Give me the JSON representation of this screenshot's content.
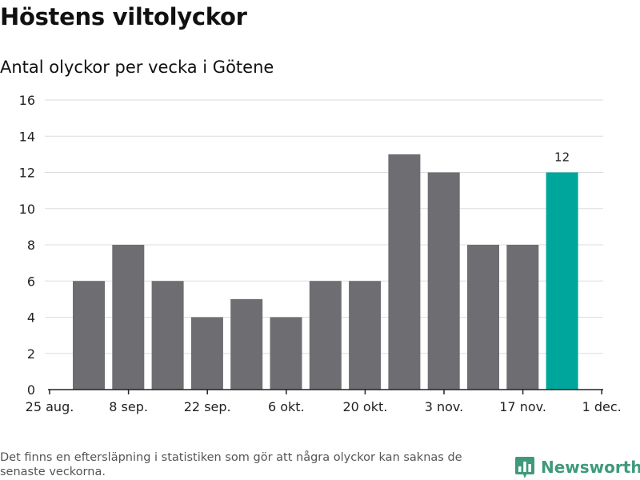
{
  "title": "Höstens viltolyckor",
  "subtitle": "Antal olyckor per vecka i Götene",
  "footnote": "Det finns en eftersläpning i statistiken som gör att några olyckor kan saknas de senaste veckorna.",
  "logo": {
    "text": "Newsworthy",
    "icon": "newsworthy-logo-icon"
  },
  "colors": {
    "bar": "#6e6d72",
    "highlight": "#00a59b",
    "grid": "#dddddd",
    "axis": "#222222"
  },
  "chart_data": {
    "type": "bar",
    "values": [
      6,
      8,
      6,
      4,
      5,
      4,
      6,
      6,
      13,
      12,
      8,
      8,
      12
    ],
    "highlight_index": 12,
    "data_labels": [
      {
        "index": 12,
        "text": "12"
      }
    ],
    "x_tick_labels": [
      "25 aug.",
      "8 sep.",
      "22 sep.",
      "6 okt.",
      "20 okt.",
      "3 nov.",
      "17 nov.",
      "1 dec."
    ],
    "y_ticks": [
      0,
      2,
      4,
      6,
      8,
      10,
      12,
      14,
      16
    ],
    "ylim": [
      0,
      16
    ],
    "grid": true,
    "xlabel": "",
    "ylabel": ""
  }
}
